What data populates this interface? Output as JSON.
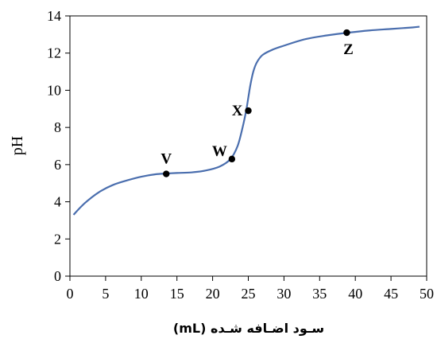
{
  "chart_data": {
    "type": "line",
    "xlabel": "سـود اضـافه شـده (mL)",
    "ylabel": "pH",
    "xlim": [
      0,
      50
    ],
    "ylim": [
      0,
      14
    ],
    "x_ticks": [
      0,
      5,
      10,
      15,
      20,
      25,
      30,
      35,
      40,
      45,
      50
    ],
    "y_ticks": [
      0,
      2,
      4,
      6,
      8,
      10,
      12,
      14
    ],
    "grid": false,
    "series": [
      {
        "line_color": "#4a6eae",
        "x": [
          0.5,
          2,
          4,
          6,
          8,
          10,
          12,
          13.5,
          15,
          17,
          19,
          21,
          22.5,
          23.5,
          24.2,
          24.7,
          25,
          25.3,
          25.7,
          26.2,
          27,
          28.5,
          30,
          33,
          36,
          39,
          42,
          45,
          48,
          49
        ],
        "y": [
          3.3,
          3.9,
          4.5,
          4.9,
          5.15,
          5.35,
          5.48,
          5.52,
          5.55,
          5.58,
          5.68,
          5.9,
          6.3,
          7.0,
          8.0,
          8.9,
          9.6,
          10.3,
          11.0,
          11.5,
          11.9,
          12.2,
          12.4,
          12.75,
          12.95,
          13.1,
          13.22,
          13.3,
          13.38,
          13.42
        ]
      }
    ],
    "points": [
      {
        "label": "V",
        "x": 13.5,
        "y": 5.5
      },
      {
        "label": "W",
        "x": 22.7,
        "y": 6.3
      },
      {
        "label": "X",
        "x": 25,
        "y": 8.9
      },
      {
        "label": "Z",
        "x": 38.8,
        "y": 13.1
      }
    ]
  }
}
